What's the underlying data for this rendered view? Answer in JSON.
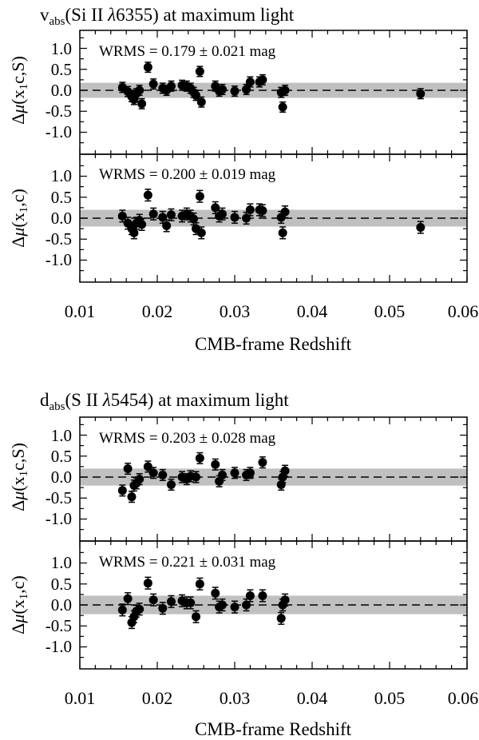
{
  "figures": [
    {
      "title_parts": [
        "v",
        "abs",
        "(Si II ",
        "λ",
        "6355) at maximum light"
      ],
      "xlabel": "CMB-frame Redshift",
      "xticks": [
        "0.01",
        "0.02",
        "0.03",
        "0.04",
        "0.05",
        "0.06"
      ],
      "panels": [
        {
          "ylabel_parts": [
            "Δ",
            "μ",
            "(x",
            "1",
            "c,S)"
          ],
          "wrms": "WRMS = 0.179 ± 0.021 mag"
        },
        {
          "ylabel_parts": [
            "Δ",
            "μ",
            "(x",
            "1",
            ",c)"
          ],
          "wrms": "WRMS = 0.200 ± 0.019 mag"
        }
      ]
    },
    {
      "title_parts": [
        "d",
        "abs",
        "(S II ",
        "λ",
        "5454) at maximum light"
      ],
      "xlabel": "CMB-frame Redshift",
      "xticks": [
        "0.01",
        "0.02",
        "0.03",
        "0.04",
        "0.05",
        "0.06"
      ],
      "panels": [
        {
          "ylabel_parts": [
            "Δ",
            "μ",
            "(x",
            "1",
            "c,S)"
          ],
          "wrms": "WRMS = 0.203 ± 0.028 mag"
        },
        {
          "ylabel_parts": [
            "Δ",
            "μ",
            "(x",
            "1",
            ",c)"
          ],
          "wrms": "WRMS = 0.221 ± 0.031 mag"
        }
      ]
    }
  ],
  "yticks": [
    "1.0",
    "0.5",
    "0.0",
    "-0.5",
    "-1.0"
  ],
  "chart_data": [
    {
      "type": "scatter",
      "title": "v_abs(Si II λ6355) at maximum light",
      "xlabel": "CMB-frame Redshift",
      "ylabel": "Δμ(x1c,S)",
      "annotation": "WRMS = 0.179 ± 0.021 mag",
      "xlim": [
        0.01,
        0.06
      ],
      "ylim": [
        -1.45,
        1.45
      ],
      "band": [
        -0.179,
        0.179
      ],
      "marker_color": "#000000",
      "band_color": "#c0c0c0",
      "points": [
        {
          "x": 0.0155,
          "y": 0.07,
          "err": 0.12
        },
        {
          "x": 0.0162,
          "y": -0.03,
          "err": 0.12
        },
        {
          "x": 0.0167,
          "y": -0.15,
          "err": 0.12
        },
        {
          "x": 0.017,
          "y": -0.22,
          "err": 0.12
        },
        {
          "x": 0.0173,
          "y": -0.08,
          "err": 0.12
        },
        {
          "x": 0.0177,
          "y": 0.0,
          "err": 0.12
        },
        {
          "x": 0.018,
          "y": -0.32,
          "err": 0.12
        },
        {
          "x": 0.0188,
          "y": 0.55,
          "err": 0.12
        },
        {
          "x": 0.0195,
          "y": 0.15,
          "err": 0.12
        },
        {
          "x": 0.0207,
          "y": 0.05,
          "err": 0.12
        },
        {
          "x": 0.0212,
          "y": 0.0,
          "err": 0.12
        },
        {
          "x": 0.0218,
          "y": 0.1,
          "err": 0.12
        },
        {
          "x": 0.0232,
          "y": 0.12,
          "err": 0.12
        },
        {
          "x": 0.0238,
          "y": 0.1,
          "err": 0.12
        },
        {
          "x": 0.0243,
          "y": 0.05,
          "err": 0.12
        },
        {
          "x": 0.0247,
          "y": -0.05,
          "err": 0.12
        },
        {
          "x": 0.025,
          "y": -0.12,
          "err": 0.12
        },
        {
          "x": 0.0255,
          "y": 0.45,
          "err": 0.12
        },
        {
          "x": 0.0257,
          "y": -0.28,
          "err": 0.12
        },
        {
          "x": 0.0275,
          "y": 0.1,
          "err": 0.12
        },
        {
          "x": 0.028,
          "y": -0.02,
          "err": 0.12
        },
        {
          "x": 0.0284,
          "y": 0.02,
          "err": 0.12
        },
        {
          "x": 0.03,
          "y": -0.02,
          "err": 0.12
        },
        {
          "x": 0.0315,
          "y": 0.02,
          "err": 0.12
        },
        {
          "x": 0.032,
          "y": 0.2,
          "err": 0.12
        },
        {
          "x": 0.0332,
          "y": 0.2,
          "err": 0.12
        },
        {
          "x": 0.0336,
          "y": 0.25,
          "err": 0.12
        },
        {
          "x": 0.036,
          "y": -0.05,
          "err": 0.12
        },
        {
          "x": 0.0362,
          "y": -0.4,
          "err": 0.12
        },
        {
          "x": 0.0365,
          "y": 0.0,
          "err": 0.12
        },
        {
          "x": 0.054,
          "y": -0.08,
          "err": 0.12
        }
      ]
    },
    {
      "type": "scatter",
      "title": "",
      "xlabel": "CMB-frame Redshift",
      "ylabel": "Δμ(x1,c)",
      "annotation": "WRMS = 0.200 ± 0.019 mag",
      "xlim": [
        0.01,
        0.06
      ],
      "ylim": [
        -1.45,
        1.45
      ],
      "band": [
        -0.2,
        0.2
      ],
      "marker_color": "#000000",
      "band_color": "#c0c0c0",
      "points": [
        {
          "x": 0.0155,
          "y": 0.05,
          "err": 0.14
        },
        {
          "x": 0.0162,
          "y": -0.12,
          "err": 0.14
        },
        {
          "x": 0.0167,
          "y": -0.25,
          "err": 0.14
        },
        {
          "x": 0.017,
          "y": -0.35,
          "err": 0.14
        },
        {
          "x": 0.0173,
          "y": -0.12,
          "err": 0.14
        },
        {
          "x": 0.0177,
          "y": -0.05,
          "err": 0.14
        },
        {
          "x": 0.018,
          "y": -0.15,
          "err": 0.14
        },
        {
          "x": 0.0188,
          "y": 0.55,
          "err": 0.14
        },
        {
          "x": 0.0195,
          "y": 0.1,
          "err": 0.14
        },
        {
          "x": 0.0207,
          "y": 0.02,
          "err": 0.14
        },
        {
          "x": 0.0212,
          "y": -0.18,
          "err": 0.14
        },
        {
          "x": 0.0218,
          "y": 0.08,
          "err": 0.14
        },
        {
          "x": 0.0232,
          "y": 0.05,
          "err": 0.14
        },
        {
          "x": 0.0238,
          "y": 0.1,
          "err": 0.14
        },
        {
          "x": 0.0243,
          "y": 0.05,
          "err": 0.14
        },
        {
          "x": 0.0247,
          "y": -0.02,
          "err": 0.14
        },
        {
          "x": 0.025,
          "y": -0.25,
          "err": 0.14
        },
        {
          "x": 0.0255,
          "y": 0.52,
          "err": 0.14
        },
        {
          "x": 0.0257,
          "y": -0.35,
          "err": 0.14
        },
        {
          "x": 0.0275,
          "y": 0.25,
          "err": 0.14
        },
        {
          "x": 0.028,
          "y": 0.05,
          "err": 0.14
        },
        {
          "x": 0.0284,
          "y": 0.1,
          "err": 0.14
        },
        {
          "x": 0.03,
          "y": 0.02,
          "err": 0.14
        },
        {
          "x": 0.0315,
          "y": 0.0,
          "err": 0.14
        },
        {
          "x": 0.032,
          "y": 0.2,
          "err": 0.14
        },
        {
          "x": 0.0332,
          "y": 0.2,
          "err": 0.14
        },
        {
          "x": 0.0336,
          "y": 0.18,
          "err": 0.14
        },
        {
          "x": 0.036,
          "y": 0.02,
          "err": 0.14
        },
        {
          "x": 0.0362,
          "y": -0.35,
          "err": 0.14
        },
        {
          "x": 0.0365,
          "y": 0.15,
          "err": 0.14
        },
        {
          "x": 0.054,
          "y": -0.22,
          "err": 0.14
        }
      ]
    },
    {
      "type": "scatter",
      "title": "d_abs(S II λ5454) at maximum light",
      "xlabel": "CMB-frame Redshift",
      "ylabel": "Δμ(x1c,S)",
      "annotation": "WRMS = 0.203 ± 0.028 mag",
      "xlim": [
        0.01,
        0.06
      ],
      "ylim": [
        -1.45,
        1.45
      ],
      "band": [
        -0.203,
        0.203
      ],
      "marker_color": "#000000",
      "band_color": "#c0c0c0",
      "points": [
        {
          "x": 0.0155,
          "y": -0.32,
          "err": 0.13
        },
        {
          "x": 0.0162,
          "y": 0.2,
          "err": 0.13
        },
        {
          "x": 0.0167,
          "y": -0.47,
          "err": 0.13
        },
        {
          "x": 0.017,
          "y": -0.2,
          "err": 0.13
        },
        {
          "x": 0.0173,
          "y": -0.15,
          "err": 0.13
        },
        {
          "x": 0.0177,
          "y": -0.05,
          "err": 0.13
        },
        {
          "x": 0.0188,
          "y": 0.25,
          "err": 0.13
        },
        {
          "x": 0.0195,
          "y": 0.1,
          "err": 0.13
        },
        {
          "x": 0.0207,
          "y": 0.05,
          "err": 0.13
        },
        {
          "x": 0.0218,
          "y": -0.18,
          "err": 0.13
        },
        {
          "x": 0.0232,
          "y": 0.0,
          "err": 0.13
        },
        {
          "x": 0.0238,
          "y": -0.05,
          "err": 0.13
        },
        {
          "x": 0.0243,
          "y": 0.02,
          "err": 0.13
        },
        {
          "x": 0.025,
          "y": 0.0,
          "err": 0.13
        },
        {
          "x": 0.0255,
          "y": 0.45,
          "err": 0.13
        },
        {
          "x": 0.0275,
          "y": 0.3,
          "err": 0.13
        },
        {
          "x": 0.028,
          "y": -0.1,
          "err": 0.13
        },
        {
          "x": 0.0284,
          "y": 0.05,
          "err": 0.13
        },
        {
          "x": 0.03,
          "y": 0.1,
          "err": 0.13
        },
        {
          "x": 0.0315,
          "y": 0.05,
          "err": 0.13
        },
        {
          "x": 0.032,
          "y": 0.1,
          "err": 0.13
        },
        {
          "x": 0.0336,
          "y": 0.35,
          "err": 0.13
        },
        {
          "x": 0.036,
          "y": -0.18,
          "err": 0.13
        },
        {
          "x": 0.0362,
          "y": 0.0,
          "err": 0.13
        },
        {
          "x": 0.0365,
          "y": 0.15,
          "err": 0.13
        }
      ]
    },
    {
      "type": "scatter",
      "title": "",
      "xlabel": "CMB-frame Redshift",
      "ylabel": "Δμ(x1,c)",
      "annotation": "WRMS = 0.221 ± 0.031 mag",
      "xlim": [
        0.01,
        0.06
      ],
      "ylim": [
        -1.45,
        1.45
      ],
      "band": [
        -0.221,
        0.221
      ],
      "marker_color": "#000000",
      "band_color": "#c0c0c0",
      "points": [
        {
          "x": 0.0155,
          "y": -0.12,
          "err": 0.14
        },
        {
          "x": 0.0162,
          "y": 0.15,
          "err": 0.14
        },
        {
          "x": 0.0167,
          "y": -0.42,
          "err": 0.14
        },
        {
          "x": 0.017,
          "y": -0.28,
          "err": 0.14
        },
        {
          "x": 0.0173,
          "y": -0.15,
          "err": 0.14
        },
        {
          "x": 0.0177,
          "y": -0.1,
          "err": 0.14
        },
        {
          "x": 0.0188,
          "y": 0.52,
          "err": 0.14
        },
        {
          "x": 0.0195,
          "y": 0.12,
          "err": 0.14
        },
        {
          "x": 0.0207,
          "y": -0.08,
          "err": 0.14
        },
        {
          "x": 0.0218,
          "y": 0.08,
          "err": 0.14
        },
        {
          "x": 0.0232,
          "y": 0.1,
          "err": 0.14
        },
        {
          "x": 0.0238,
          "y": 0.05,
          "err": 0.14
        },
        {
          "x": 0.0243,
          "y": 0.05,
          "err": 0.14
        },
        {
          "x": 0.025,
          "y": -0.28,
          "err": 0.14
        },
        {
          "x": 0.0255,
          "y": 0.5,
          "err": 0.14
        },
        {
          "x": 0.0275,
          "y": 0.28,
          "err": 0.14
        },
        {
          "x": 0.028,
          "y": -0.05,
          "err": 0.14
        },
        {
          "x": 0.0284,
          "y": 0.0,
          "err": 0.14
        },
        {
          "x": 0.03,
          "y": -0.05,
          "err": 0.14
        },
        {
          "x": 0.0315,
          "y": 0.0,
          "err": 0.14
        },
        {
          "x": 0.032,
          "y": 0.22,
          "err": 0.14
        },
        {
          "x": 0.0336,
          "y": 0.22,
          "err": 0.14
        },
        {
          "x": 0.036,
          "y": -0.32,
          "err": 0.14
        },
        {
          "x": 0.0362,
          "y": 0.0,
          "err": 0.14
        },
        {
          "x": 0.0365,
          "y": 0.12,
          "err": 0.14
        }
      ]
    }
  ]
}
